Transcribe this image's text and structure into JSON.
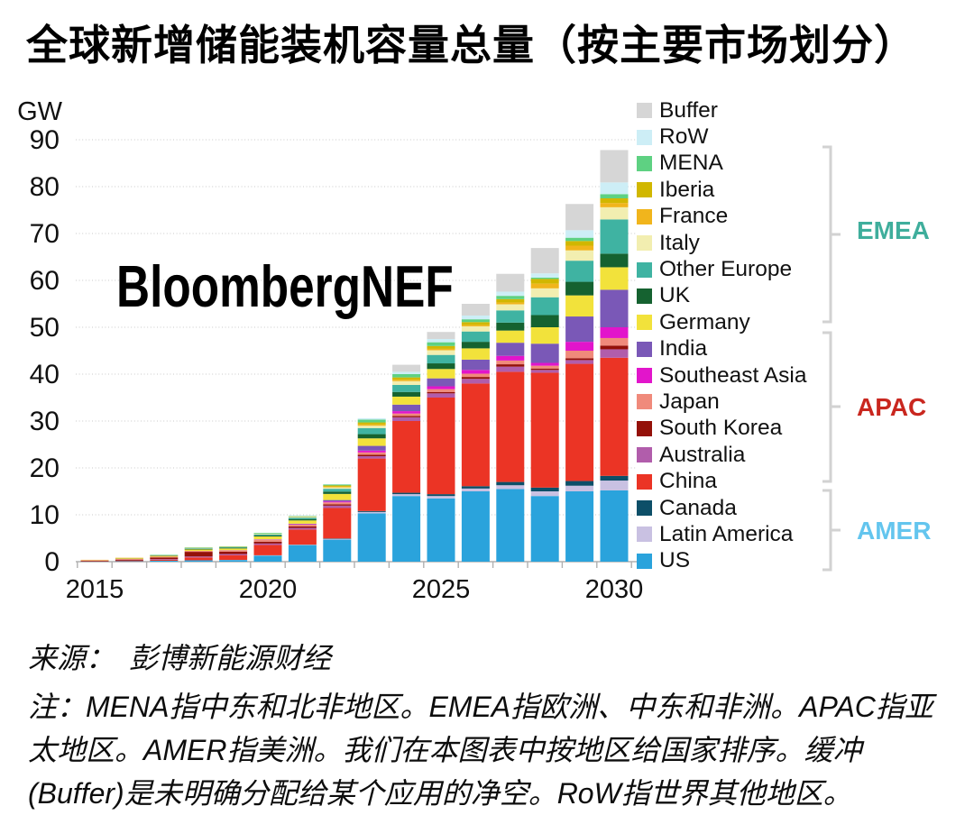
{
  "title": "全球新增储能装机容量总量（按主要市场划分）",
  "watermark": "BloombergNEF",
  "footer": {
    "source": "来源：　彭博新能源财经",
    "note": "注：MENA指中东和北非地区。EMEA指欧洲、中东和非洲。APAC指亚太地区。AMER指美洲。我们在本图表中按地区给国家排序。缓冲(Buffer)是未明确分配给某个应用的净空。RoW指世界其他地区。"
  },
  "groups": [
    {
      "label": "EMEA",
      "color": "#3fae9c",
      "members": [
        "MENA",
        "Iberia",
        "France",
        "Italy",
        "Other Europe",
        "UK",
        "Germany"
      ]
    },
    {
      "label": "APAC",
      "color": "#c9271f",
      "members": [
        "India",
        "Southeast Asia",
        "Japan",
        "South Korea",
        "Australia",
        "China"
      ]
    },
    {
      "label": "AMER",
      "color": "#63c5ee",
      "members": [
        "Canada",
        "Latin America",
        "US"
      ]
    }
  ],
  "chart_data": {
    "type": "bar",
    "stacked": true,
    "title": "全球新增储能装机容量总量（按主要市场划分）",
    "ylabel": "GW",
    "ylim": [
      0,
      90
    ],
    "y_ticks": [
      0,
      10,
      20,
      30,
      40,
      50,
      60,
      70,
      80,
      90
    ],
    "x_tick_labels": [
      "2015",
      "2020",
      "2025",
      "2030"
    ],
    "grid": "horizontal dotted",
    "legend_position": "right",
    "categories": [
      2015,
      2016,
      2017,
      2018,
      2019,
      2020,
      2021,
      2022,
      2023,
      2024,
      2025,
      2026,
      2027,
      2028,
      2029,
      2030
    ],
    "series": [
      {
        "name": "US",
        "color": "#2aa3dc",
        "values": [
          0.05,
          0.1,
          0.2,
          0.3,
          0.35,
          1.3,
          3.5,
          4.7,
          10.3,
          14.0,
          13.5,
          15.0,
          15.5,
          14.0,
          15.0,
          15.2
        ]
      },
      {
        "name": "Latin America",
        "color": "#c9c1e2",
        "values": [
          0,
          0,
          0,
          0,
          0.03,
          0.05,
          0.1,
          0.15,
          0.3,
          0.4,
          0.5,
          0.6,
          0.8,
          1.0,
          1.2,
          2.1
        ]
      },
      {
        "name": "Canada",
        "color": "#0d4f68",
        "values": [
          0,
          0,
          0,
          0,
          0,
          0.02,
          0.05,
          0.1,
          0.2,
          0.3,
          0.4,
          0.5,
          0.7,
          0.8,
          1.0,
          1.0
        ]
      },
      {
        "name": "China",
        "color": "#eb3425",
        "values": [
          0.05,
          0.1,
          0.2,
          0.6,
          1.0,
          2.2,
          3.2,
          6.5,
          11.2,
          15.3,
          20.6,
          21.9,
          23.5,
          24.5,
          25.0,
          25.2
        ]
      },
      {
        "name": "Australia",
        "color": "#b15dab",
        "values": [
          0,
          0.03,
          0.15,
          0.2,
          0.25,
          0.3,
          0.35,
          0.5,
          0.5,
          0.8,
          0.9,
          1.0,
          1.1,
          0.6,
          0.8,
          1.8
        ]
      },
      {
        "name": "South Korea",
        "color": "#941109",
        "values": [
          0.1,
          0.2,
          0.35,
          1.0,
          0.5,
          0.4,
          0.3,
          0.3,
          0.3,
          0.3,
          0.3,
          0.4,
          0.5,
          0.3,
          0.4,
          0.8
        ]
      },
      {
        "name": "Japan",
        "color": "#f08a7b",
        "values": [
          0.1,
          0.15,
          0.15,
          0.2,
          0.3,
          0.4,
          0.4,
          0.4,
          0.5,
          0.5,
          0.6,
          0.7,
          0.8,
          0.6,
          1.6,
          1.6
        ]
      },
      {
        "name": "Southeast Asia",
        "color": "#e215cb",
        "values": [
          0,
          0,
          0,
          0,
          0.02,
          0.05,
          0.1,
          0.2,
          0.4,
          0.5,
          0.6,
          0.8,
          1.0,
          0.6,
          1.9,
          2.3
        ]
      },
      {
        "name": "India",
        "color": "#7a58b7",
        "values": [
          0,
          0,
          0,
          0,
          0.02,
          0.05,
          0.1,
          0.3,
          1.0,
          1.4,
          1.7,
          2.2,
          2.8,
          4.1,
          5.4,
          8.0
        ]
      },
      {
        "name": "Germany",
        "color": "#f2e23b",
        "values": [
          0.05,
          0.1,
          0.15,
          0.3,
          0.35,
          0.6,
          0.7,
          1.3,
          1.6,
          1.7,
          2.0,
          2.4,
          2.6,
          3.5,
          4.5,
          4.8
        ]
      },
      {
        "name": "UK",
        "color": "#156230",
        "values": [
          0,
          0.05,
          0.1,
          0.15,
          0.15,
          0.2,
          0.3,
          0.5,
          0.9,
          1.0,
          1.2,
          1.4,
          1.7,
          2.6,
          2.9,
          2.9
        ]
      },
      {
        "name": "Other Europe",
        "color": "#3fb3a2",
        "values": [
          0,
          0,
          0,
          0.1,
          0.1,
          0.2,
          0.3,
          0.6,
          1.3,
          1.5,
          1.8,
          2.2,
          2.6,
          3.8,
          4.5,
          7.3
        ]
      },
      {
        "name": "Italy",
        "color": "#f2eeb0",
        "values": [
          0,
          0,
          0,
          0.05,
          0.05,
          0.1,
          0.15,
          0.3,
          0.5,
          0.8,
          1.0,
          1.1,
          1.3,
          1.9,
          2.2,
          2.6
        ]
      },
      {
        "name": "France",
        "color": "#f1b51c",
        "values": [
          0.05,
          0.1,
          0.05,
          0.05,
          0.05,
          0.05,
          0.05,
          0.2,
          0.3,
          0.3,
          0.3,
          0.3,
          0.4,
          1.0,
          1.0,
          0.9
        ]
      },
      {
        "name": "Iberia",
        "color": "#d1b700",
        "values": [
          0,
          0,
          0,
          0,
          0,
          0,
          0.05,
          0.2,
          0.4,
          0.5,
          0.6,
          0.6,
          0.7,
          1.0,
          1.0,
          1.0
        ]
      },
      {
        "name": "MENA",
        "color": "#5ed182",
        "values": [
          0,
          0,
          0.1,
          0.1,
          0.1,
          0.2,
          0.1,
          0.2,
          0.6,
          0.7,
          0.8,
          0.6,
          0.7,
          0.3,
          0.7,
          0.9
        ]
      },
      {
        "name": "RoW",
        "color": "#cdeef6",
        "values": [
          0,
          0,
          0,
          0,
          0,
          0,
          0.1,
          0.1,
          0.3,
          0.5,
          0.7,
          0.8,
          0.9,
          0.9,
          1.6,
          2.5
        ]
      },
      {
        "name": "Buffer",
        "color": "#d6d6d6",
        "values": [
          0,
          0,
          0,
          0,
          0,
          0,
          0,
          0,
          0,
          1.5,
          1.5,
          2.5,
          3.8,
          5.4,
          5.6,
          6.9
        ]
      }
    ]
  }
}
